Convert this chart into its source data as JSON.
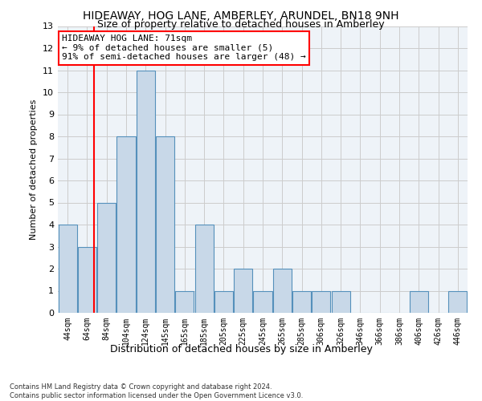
{
  "title": "HIDEAWAY, HOG LANE, AMBERLEY, ARUNDEL, BN18 9NH",
  "subtitle": "Size of property relative to detached houses in Amberley",
  "xlabel": "Distribution of detached houses by size in Amberley",
  "ylabel": "Number of detached properties",
  "categories": [
    "44sqm",
    "64sqm",
    "84sqm",
    "104sqm",
    "124sqm",
    "145sqm",
    "165sqm",
    "185sqm",
    "205sqm",
    "225sqm",
    "245sqm",
    "265sqm",
    "285sqm",
    "306sqm",
    "326sqm",
    "346sqm",
    "366sqm",
    "386sqm",
    "406sqm",
    "426sqm",
    "446sqm"
  ],
  "values": [
    4,
    3,
    5,
    8,
    11,
    8,
    1,
    4,
    1,
    2,
    1,
    2,
    1,
    1,
    1,
    0,
    0,
    0,
    1,
    0,
    1
  ],
  "bar_color": "#c8d8e8",
  "bar_edge_color": "#5590bb",
  "grid_color": "#cccccc",
  "background_color": "#eef3f8",
  "red_line_x": 1.35,
  "annotation_line1": "HIDEAWAY HOG LANE: 71sqm",
  "annotation_line2": "← 9% of detached houses are smaller (5)",
  "annotation_line3": "91% of semi-detached houses are larger (48) →",
  "annotation_box_color": "white",
  "annotation_box_edge": "red",
  "ylim": [
    0,
    13
  ],
  "yticks": [
    0,
    1,
    2,
    3,
    4,
    5,
    6,
    7,
    8,
    9,
    10,
    11,
    12,
    13
  ],
  "footer": "Contains HM Land Registry data © Crown copyright and database right 2024.\nContains public sector information licensed under the Open Government Licence v3.0.",
  "title_fontsize": 10,
  "subtitle_fontsize": 9,
  "ylabel_fontsize": 8,
  "xlabel_fontsize": 9,
  "tick_fontsize": 7,
  "ytick_fontsize": 8,
  "footer_fontsize": 6,
  "annot_fontsize": 8
}
